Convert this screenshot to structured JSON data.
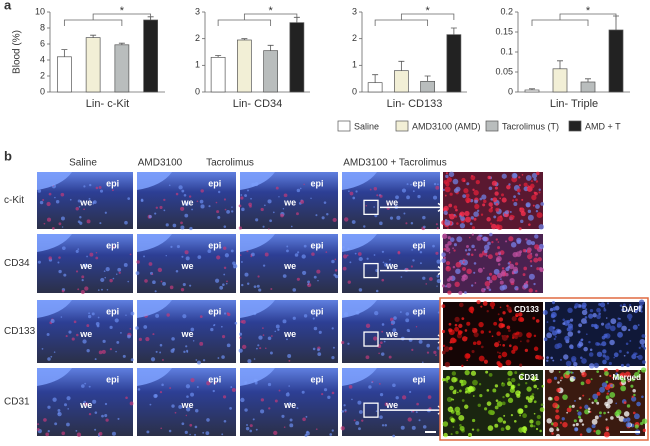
{
  "panel_labels": [
    "a",
    "b"
  ],
  "y_label": "Blood (%)",
  "legend": [
    {
      "name": "Saline",
      "color": "#ffffff"
    },
    {
      "name": "AMD3100 (AMD)",
      "color": "#f2efd6"
    },
    {
      "name": "Tacrolimus (T)",
      "color": "#b9bdbd"
    },
    {
      "name": "AMD + T",
      "color": "#222222"
    }
  ],
  "chart_data": [
    {
      "type": "bar",
      "title": "Lin- c-Kit",
      "values": [
        4.4,
        6.8,
        5.9,
        9.0
      ],
      "errors": [
        0.9,
        0.3,
        0.2,
        0.4
      ],
      "ylim": [
        0,
        10
      ],
      "yticks": [
        0,
        2,
        4,
        6,
        8,
        10
      ],
      "significance": "*"
    },
    {
      "type": "bar",
      "title": "Lin- CD34",
      "values": [
        1.3,
        1.95,
        1.55,
        2.6
      ],
      "errors": [
        0.07,
        0.05,
        0.2,
        0.2
      ],
      "ylim": [
        0,
        3
      ],
      "yticks": [
        0,
        1,
        2,
        3
      ],
      "significance": "*"
    },
    {
      "type": "bar",
      "title": "Lin- CD133",
      "values": [
        0.35,
        0.8,
        0.4,
        2.15
      ],
      "errors": [
        0.3,
        0.35,
        0.2,
        0.25
      ],
      "ylim": [
        0,
        3
      ],
      "yticks": [
        0,
        1,
        2,
        3
      ],
      "significance": "*"
    },
    {
      "type": "bar",
      "title": "Lin- Triple",
      "values": [
        0.005,
        0.058,
        0.025,
        0.155
      ],
      "errors": [
        0.003,
        0.02,
        0.008,
        0.035
      ],
      "ylim": [
        0,
        0.2
      ],
      "yticks": [
        0,
        0.05,
        0.1,
        0.15,
        0.2
      ],
      "significance": "*"
    }
  ],
  "micrographs": {
    "columns": [
      "Saline",
      "AMD3100",
      "Tacrolimus",
      "AMD3100 + Tacrolimus"
    ],
    "rows": [
      "c-Kit",
      "CD34",
      "CD133",
      "CD31"
    ],
    "tissue_labels": [
      "epi",
      "we"
    ],
    "insets": [
      "CD133",
      "DAPI",
      "CD31",
      "Merged"
    ]
  }
}
